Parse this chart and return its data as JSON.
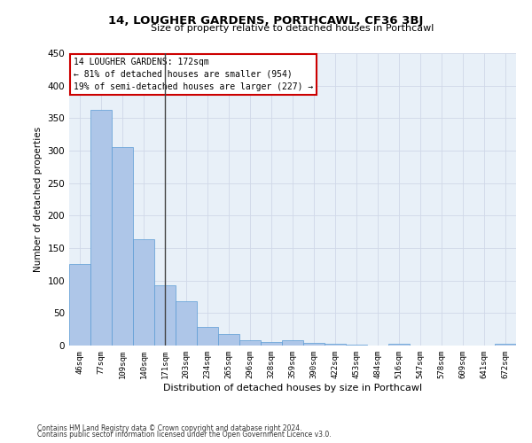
{
  "title": "14, LOUGHER GARDENS, PORTHCAWL, CF36 3BJ",
  "subtitle": "Size of property relative to detached houses in Porthcawl",
  "xlabel": "Distribution of detached houses by size in Porthcawl",
  "ylabel": "Number of detached properties",
  "footer_line1": "Contains HM Land Registry data © Crown copyright and database right 2024.",
  "footer_line2": "Contains public sector information licensed under the Open Government Licence v3.0.",
  "categories": [
    "46sqm",
    "77sqm",
    "109sqm",
    "140sqm",
    "171sqm",
    "203sqm",
    "234sqm",
    "265sqm",
    "296sqm",
    "328sqm",
    "359sqm",
    "390sqm",
    "422sqm",
    "453sqm",
    "484sqm",
    "516sqm",
    "547sqm",
    "578sqm",
    "609sqm",
    "641sqm",
    "672sqm"
  ],
  "values": [
    125,
    363,
    305,
    163,
    93,
    68,
    28,
    18,
    8,
    6,
    8,
    4,
    3,
    1,
    0,
    3,
    0,
    0,
    0,
    0,
    3
  ],
  "bar_color": "#aec6e8",
  "bar_edge_color": "#5b9bd5",
  "grid_color": "#d0d8e8",
  "background_color": "#e8f0f8",
  "marker_category_index": 4,
  "marker_label": "14 LOUGHER GARDENS: 172sqm",
  "annotation_line1": "← 81% of detached houses are smaller (954)",
  "annotation_line2": "19% of semi-detached houses are larger (227) →",
  "box_edge_color": "#cc0000",
  "ylim": [
    0,
    450
  ],
  "yticks": [
    0,
    50,
    100,
    150,
    200,
    250,
    300,
    350,
    400,
    450
  ]
}
